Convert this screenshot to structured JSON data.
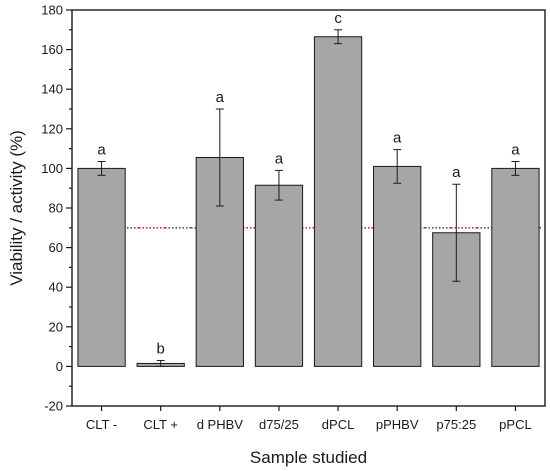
{
  "chart_data": {
    "type": "bar",
    "categories": [
      "CLT -",
      "CLT +",
      "d PHBV",
      "d75/25",
      "dPCL",
      "pPHBV",
      "p75:25",
      "pPCL"
    ],
    "values": [
      100,
      1.5,
      105.5,
      91.5,
      166.5,
      101,
      67.5,
      100
    ],
    "error_bars": [
      3.5,
      1.5,
      24.5,
      7.5,
      3.5,
      8.5,
      24.5,
      3.5
    ],
    "significance_labels": [
      "a",
      "b",
      "a",
      "a",
      "c",
      "a",
      "a",
      "a"
    ],
    "threshold": 70,
    "xlabel": "Sample studied",
    "ylabel": "Viability / activity (%)",
    "ylim": [
      -20,
      180
    ],
    "yticks": [
      -20,
      0,
      20,
      40,
      60,
      80,
      100,
      120,
      140,
      160,
      180
    ],
    "bar_color": "#a6a6a6",
    "threshold_colors": [
      "#cc0000",
      "#333333"
    ],
    "grid": false
  }
}
